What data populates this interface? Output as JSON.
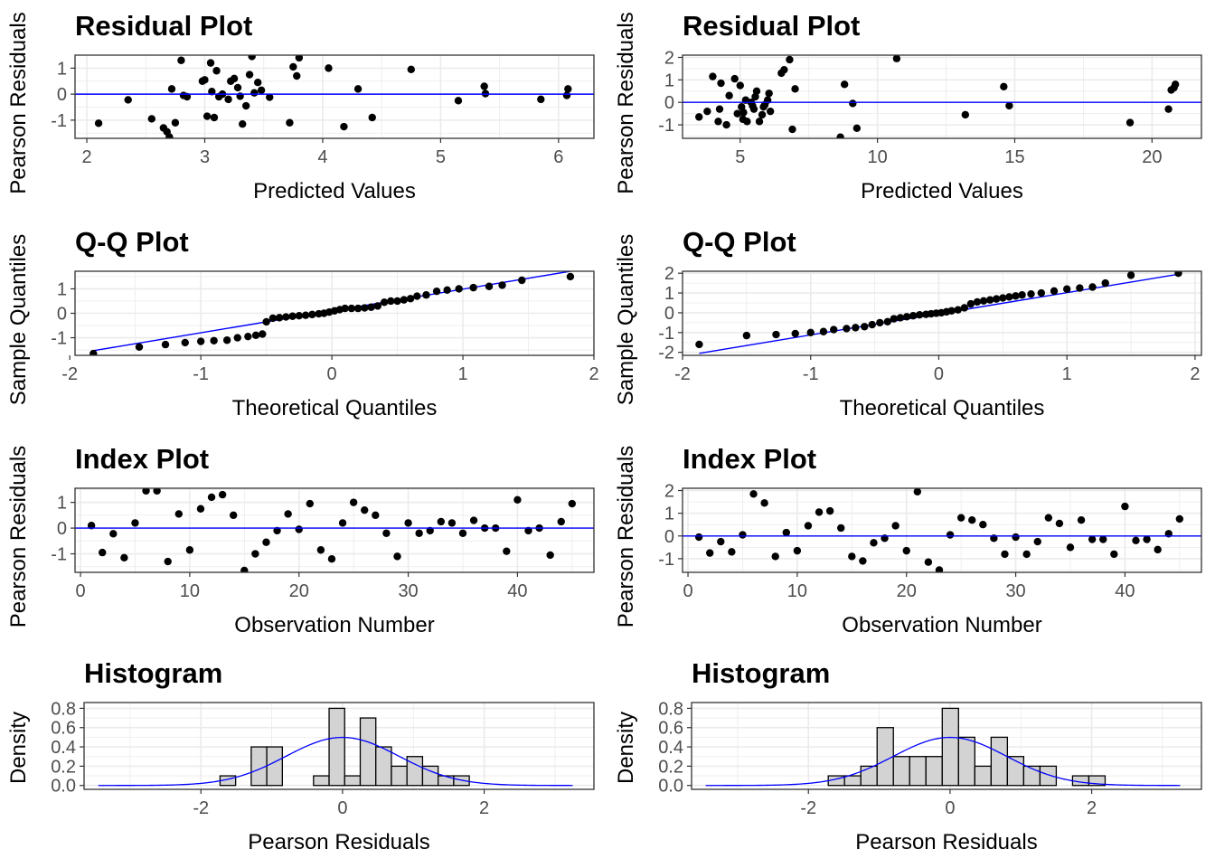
{
  "style": {
    "line_color": "#0000ff",
    "point_color": "#000000",
    "bar_fill": "#d3d3d3",
    "grid_color": "#ebebeb",
    "panel_border": "#333333"
  },
  "chart_data": [
    {
      "type": "scatter",
      "title": "Residual Plot",
      "xlabel": "Predicted Values",
      "ylabel": "Pearson Residuals",
      "xlim": [
        1.9,
        6.3
      ],
      "ylim": [
        -1.7,
        1.5
      ],
      "xticks": [
        2,
        3,
        4,
        5,
        6
      ],
      "yticks": [
        -1,
        0,
        1
      ],
      "hline": 0,
      "x": [
        2.1,
        2.35,
        2.55,
        2.65,
        2.68,
        2.7,
        2.72,
        2.75,
        2.8,
        2.82,
        2.85,
        2.98,
        3.0,
        3.02,
        3.05,
        3.06,
        3.08,
        3.1,
        3.12,
        3.15,
        3.2,
        3.22,
        3.25,
        3.28,
        3.3,
        3.32,
        3.35,
        3.38,
        3.4,
        3.42,
        3.45,
        3.48,
        3.55,
        3.72,
        3.75,
        3.78,
        3.8,
        4.05,
        4.18,
        4.3,
        4.42,
        4.75,
        5.15,
        5.37,
        5.38,
        5.85,
        6.07,
        6.08
      ],
      "y": [
        -1.12,
        -0.22,
        -0.95,
        -1.3,
        -1.45,
        -1.65,
        0.2,
        -1.1,
        1.3,
        -0.05,
        -0.1,
        0.5,
        0.55,
        -0.85,
        1.2,
        0.1,
        -0.9,
        0.9,
        -0.1,
        0.0,
        -0.2,
        0.5,
        0.6,
        0.25,
        -0.08,
        -1.15,
        -0.45,
        0.75,
        1.45,
        0.05,
        0.45,
        0.15,
        -0.12,
        -1.1,
        1.05,
        0.7,
        1.4,
        1.0,
        -1.25,
        0.2,
        -0.9,
        0.95,
        -0.25,
        0.3,
        0.02,
        -0.2,
        -0.05,
        0.2
      ]
    },
    {
      "type": "scatter",
      "title": "Residual Plot",
      "xlabel": "Predicted Values",
      "ylabel": "Pearson Residuals",
      "xlim": [
        2.9,
        21.8
      ],
      "ylim": [
        -1.6,
        2.1
      ],
      "xticks": [
        5,
        10,
        15,
        20
      ],
      "yticks": [
        -1,
        0,
        1,
        2
      ],
      "hline": 0,
      "x": [
        3.5,
        3.8,
        4.0,
        4.2,
        4.25,
        4.3,
        4.5,
        4.6,
        4.8,
        4.9,
        5.0,
        5.05,
        5.1,
        5.12,
        5.2,
        5.25,
        5.4,
        5.45,
        5.5,
        5.55,
        5.6,
        5.7,
        5.8,
        5.85,
        5.9,
        6.0,
        6.05,
        6.1,
        6.5,
        6.6,
        6.8,
        6.9,
        7.0,
        8.65,
        8.8,
        9.1,
        9.25,
        10.7,
        13.2,
        14.6,
        14.8,
        19.2,
        20.6,
        20.7,
        20.8,
        20.85
      ],
      "y": [
        -0.65,
        -0.4,
        1.15,
        -0.85,
        -0.3,
        0.85,
        -1.0,
        0.3,
        1.05,
        -0.5,
        0.75,
        -0.2,
        -0.75,
        -0.45,
        0.1,
        -0.85,
        0.0,
        -0.15,
        -0.3,
        0.25,
        0.5,
        -0.85,
        -0.55,
        -0.2,
        -0.1,
        0.1,
        0.4,
        -0.4,
        1.3,
        1.45,
        1.9,
        -1.2,
        0.6,
        -1.55,
        0.8,
        -0.05,
        -1.15,
        1.95,
        -0.55,
        0.7,
        -0.15,
        -0.9,
        -0.3,
        0.55,
        0.65,
        0.8
      ]
    },
    {
      "type": "scatter",
      "title": "Q-Q Plot",
      "xlabel": "Theoretical Quantiles",
      "ylabel": "Sample Quantiles",
      "xlim": [
        -1.96,
        2.0
      ],
      "ylim": [
        -1.72,
        1.72
      ],
      "xticks": [
        -2,
        -1,
        0,
        1,
        2
      ],
      "yticks": [
        -1,
        0,
        1
      ],
      "refline": {
        "x": [
          -1.82,
          1.82
        ],
        "y": [
          -1.53,
          1.72
        ]
      },
      "x": [
        -1.82,
        -1.47,
        -1.27,
        -1.12,
        -1.0,
        -0.9,
        -0.8,
        -0.72,
        -0.64,
        -0.58,
        -0.53,
        -0.5,
        -0.45,
        -0.4,
        -0.35,
        -0.3,
        -0.25,
        -0.2,
        -0.15,
        -0.1,
        -0.06,
        -0.02,
        0.02,
        0.06,
        0.1,
        0.15,
        0.2,
        0.25,
        0.3,
        0.35,
        0.4,
        0.45,
        0.5,
        0.55,
        0.6,
        0.65,
        0.72,
        0.8,
        0.88,
        0.97,
        1.08,
        1.2,
        1.3,
        1.45,
        1.82
      ],
      "y": [
        -1.65,
        -1.38,
        -1.28,
        -1.2,
        -1.15,
        -1.12,
        -1.1,
        -1.0,
        -0.95,
        -0.9,
        -0.85,
        -0.35,
        -0.2,
        -0.18,
        -0.15,
        -0.12,
        -0.1,
        -0.08,
        -0.05,
        -0.02,
        0.0,
        0.05,
        0.1,
        0.15,
        0.2,
        0.2,
        0.2,
        0.22,
        0.25,
        0.3,
        0.45,
        0.5,
        0.5,
        0.55,
        0.6,
        0.7,
        0.75,
        0.9,
        0.95,
        1.0,
        1.05,
        1.1,
        1.15,
        1.35,
        1.5
      ]
    },
    {
      "type": "scatter",
      "title": "Q-Q Plot",
      "xlabel": "Theoretical Quantiles",
      "ylabel": "Sample Quantiles",
      "xlim": [
        -2.0,
        2.05
      ],
      "ylim": [
        -2.15,
        2.1
      ],
      "xticks": [
        -2,
        -1,
        0,
        1,
        2
      ],
      "yticks": [
        -2,
        -1,
        0,
        1,
        2
      ],
      "refline": {
        "x": [
          -1.87,
          1.87
        ],
        "y": [
          -2.05,
          1.95
        ]
      },
      "x": [
        -1.87,
        -1.5,
        -1.27,
        -1.12,
        -1.0,
        -0.9,
        -0.82,
        -0.72,
        -0.65,
        -0.58,
        -0.52,
        -0.46,
        -0.4,
        -0.35,
        -0.3,
        -0.25,
        -0.2,
        -0.15,
        -0.1,
        -0.06,
        -0.02,
        0.02,
        0.06,
        0.1,
        0.15,
        0.2,
        0.25,
        0.3,
        0.35,
        0.4,
        0.45,
        0.5,
        0.55,
        0.6,
        0.65,
        0.72,
        0.8,
        0.9,
        1.0,
        1.1,
        1.2,
        1.3,
        1.5,
        1.87
      ],
      "y": [
        -1.6,
        -1.15,
        -1.1,
        -1.05,
        -1.0,
        -0.95,
        -0.85,
        -0.8,
        -0.75,
        -0.7,
        -0.6,
        -0.5,
        -0.45,
        -0.3,
        -0.25,
        -0.2,
        -0.15,
        -0.1,
        -0.08,
        -0.05,
        -0.02,
        0.0,
        0.05,
        0.1,
        0.15,
        0.25,
        0.45,
        0.55,
        0.6,
        0.65,
        0.7,
        0.75,
        0.8,
        0.85,
        0.9,
        0.95,
        1.0,
        1.1,
        1.2,
        1.25,
        1.3,
        1.5,
        1.9,
        2.0
      ]
    },
    {
      "type": "scatter",
      "title": "Index Plot",
      "xlabel": "Observation Number",
      "ylabel": "Pearson Residuals",
      "xlim": [
        -0.5,
        47
      ],
      "ylim": [
        -1.72,
        1.55
      ],
      "xticks": [
        0,
        10,
        20,
        30,
        40
      ],
      "yticks": [
        -1,
        0,
        1
      ],
      "hline": 0,
      "x": [
        1,
        2,
        3,
        4,
        5,
        6,
        7,
        8,
        9,
        10,
        11,
        12,
        13,
        14,
        15,
        16,
        17,
        18,
        19,
        20,
        21,
        22,
        23,
        24,
        25,
        26,
        27,
        28,
        29,
        30,
        31,
        32,
        33,
        34,
        35,
        36,
        37,
        38,
        39,
        40,
        41,
        42,
        43,
        44,
        45
      ],
      "y": [
        0.1,
        -0.95,
        -0.22,
        -1.15,
        0.2,
        1.45,
        1.45,
        -1.3,
        0.55,
        -0.85,
        0.75,
        1.2,
        1.3,
        0.5,
        -1.65,
        -1.0,
        -0.55,
        -0.1,
        0.55,
        -0.05,
        0.95,
        -0.85,
        -1.2,
        0.2,
        1.0,
        0.7,
        0.5,
        -0.2,
        -1.1,
        0.2,
        -0.2,
        -0.1,
        0.25,
        0.2,
        -0.2,
        0.3,
        0.0,
        0.0,
        -0.9,
        1.1,
        -0.1,
        0.0,
        -1.05,
        0.25,
        0.95
      ]
    },
    {
      "type": "scatter",
      "title": "Index Plot",
      "xlabel": "Observation Number",
      "ylabel": "Pearson Residuals",
      "xlim": [
        -0.5,
        47
      ],
      "ylim": [
        -1.6,
        2.1
      ],
      "xticks": [
        0,
        10,
        20,
        30,
        40
      ],
      "yticks": [
        -1,
        0,
        1,
        2
      ],
      "hline": 0,
      "x": [
        1,
        2,
        3,
        4,
        5,
        6,
        7,
        8,
        9,
        10,
        11,
        12,
        13,
        14,
        15,
        16,
        17,
        18,
        19,
        20,
        21,
        22,
        23,
        24,
        25,
        26,
        27,
        28,
        29,
        30,
        31,
        32,
        33,
        34,
        35,
        36,
        37,
        38,
        39,
        40,
        41,
        42,
        43,
        44,
        45
      ],
      "y": [
        -0.05,
        -0.75,
        -0.25,
        -0.7,
        0.05,
        1.85,
        1.45,
        -0.9,
        0.15,
        -0.65,
        0.45,
        1.05,
        1.1,
        0.35,
        -0.9,
        -1.1,
        -0.3,
        -0.1,
        0.45,
        -0.65,
        1.95,
        -1.15,
        -1.5,
        0.05,
        0.8,
        0.7,
        0.5,
        -0.1,
        -0.8,
        -0.05,
        -0.8,
        -0.25,
        0.8,
        0.55,
        -0.5,
        0.7,
        -0.15,
        -0.15,
        -0.8,
        1.3,
        -0.2,
        -0.15,
        -0.6,
        0.1,
        0.75
      ]
    },
    {
      "type": "bar",
      "title": "Histogram",
      "xlabel": "Pearson Residuals",
      "ylabel": "Density",
      "xlim": [
        -3.65,
        3.55
      ],
      "ylim": [
        -0.04,
        0.86
      ],
      "xticks": [
        -2,
        0,
        2
      ],
      "yticks": [
        0.0,
        0.2,
        0.4,
        0.6,
        0.8
      ],
      "bin_width": 0.22,
      "bins": [
        {
          "x0": -1.95,
          "d": 0.0
        },
        {
          "x0": -1.73,
          "d": 0.1
        },
        {
          "x0": -1.51,
          "d": 0.0
        },
        {
          "x0": -1.29,
          "d": 0.4
        },
        {
          "x0": -1.07,
          "d": 0.4
        },
        {
          "x0": -0.85,
          "d": 0.0
        },
        {
          "x0": -0.63,
          "d": 0.0
        },
        {
          "x0": -0.41,
          "d": 0.1
        },
        {
          "x0": -0.19,
          "d": 0.8
        },
        {
          "x0": 0.03,
          "d": 0.1
        },
        {
          "x0": 0.25,
          "d": 0.7
        },
        {
          "x0": 0.47,
          "d": 0.4
        },
        {
          "x0": 0.69,
          "d": 0.2
        },
        {
          "x0": 0.91,
          "d": 0.3
        },
        {
          "x0": 1.13,
          "d": 0.2
        },
        {
          "x0": 1.35,
          "d": 0.1
        },
        {
          "x0": 1.57,
          "d": 0.1
        }
      ],
      "curve": {
        "type": "normal_density",
        "mean": 0,
        "sd": 0.8,
        "x_range": [
          -3.45,
          3.25
        ]
      }
    },
    {
      "type": "bar",
      "title": "Histogram",
      "xlabel": "Pearson Residuals",
      "ylabel": "Density",
      "xlim": [
        -3.65,
        3.55
      ],
      "ylim": [
        -0.04,
        0.86
      ],
      "xticks": [
        -2,
        0,
        2
      ],
      "yticks": [
        0.0,
        0.2,
        0.4,
        0.6,
        0.8
      ],
      "bin_width": 0.23,
      "bins": [
        {
          "x0": -1.72,
          "d": 0.1
        },
        {
          "x0": -1.49,
          "d": 0.1
        },
        {
          "x0": -1.26,
          "d": 0.2
        },
        {
          "x0": -1.03,
          "d": 0.6
        },
        {
          "x0": -0.8,
          "d": 0.3
        },
        {
          "x0": -0.57,
          "d": 0.3
        },
        {
          "x0": -0.34,
          "d": 0.3
        },
        {
          "x0": -0.11,
          "d": 0.8
        },
        {
          "x0": 0.12,
          "d": 0.5
        },
        {
          "x0": 0.35,
          "d": 0.2
        },
        {
          "x0": 0.58,
          "d": 0.5
        },
        {
          "x0": 0.81,
          "d": 0.3
        },
        {
          "x0": 1.04,
          "d": 0.2
        },
        {
          "x0": 1.27,
          "d": 0.2
        },
        {
          "x0": 1.5,
          "d": 0.0
        },
        {
          "x0": 1.73,
          "d": 0.1
        },
        {
          "x0": 1.96,
          "d": 0.1
        }
      ],
      "curve": {
        "type": "normal_density",
        "mean": 0,
        "sd": 0.8,
        "x_range": [
          -3.45,
          3.25
        ]
      }
    }
  ]
}
